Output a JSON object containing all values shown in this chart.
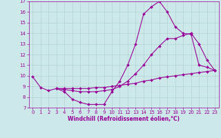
{
  "bg_color": "#cce8e8",
  "line_color": "#990099",
  "grid_color": "#aacccc",
  "xlabel": "Windchill (Refroidissement éolien,°C)",
  "xlim": [
    -0.5,
    23.5
  ],
  "ylim": [
    7,
    17
  ],
  "xticks": [
    0,
    1,
    2,
    3,
    4,
    5,
    6,
    7,
    8,
    9,
    10,
    11,
    12,
    13,
    14,
    15,
    16,
    17,
    18,
    19,
    20,
    21,
    22,
    23
  ],
  "yticks": [
    7,
    8,
    9,
    10,
    11,
    12,
    13,
    14,
    15,
    16,
    17
  ],
  "curve1_x": [
    0,
    1,
    2,
    3,
    4,
    5,
    6,
    7,
    8,
    9,
    10,
    11,
    12,
    13,
    14,
    15,
    16,
    17,
    18,
    19,
    20,
    21,
    22,
    23
  ],
  "curve1_y": [
    9.9,
    8.9,
    8.6,
    8.8,
    8.5,
    7.8,
    7.5,
    7.3,
    7.3,
    7.3,
    8.5,
    9.5,
    11.0,
    13.0,
    15.8,
    16.5,
    17.0,
    16.0,
    14.6,
    14.0,
    13.9,
    11.0,
    10.8,
    10.5
  ],
  "curve2_x": [
    3,
    4,
    5,
    6,
    7,
    8,
    9,
    10,
    11,
    12,
    13,
    14,
    15,
    16,
    17,
    18,
    19,
    20,
    21,
    22,
    23
  ],
  "curve2_y": [
    8.8,
    8.7,
    8.6,
    8.5,
    8.5,
    8.5,
    8.6,
    8.7,
    9.0,
    9.5,
    10.2,
    11.0,
    12.0,
    12.8,
    13.5,
    13.5,
    13.8,
    14.0,
    13.0,
    11.5,
    10.5
  ],
  "curve3_x": [
    3,
    4,
    5,
    6,
    7,
    8,
    9,
    10,
    11,
    12,
    13,
    14,
    15,
    16,
    17,
    18,
    19,
    20,
    21,
    22,
    23
  ],
  "curve3_y": [
    8.8,
    8.8,
    8.8,
    8.8,
    8.8,
    8.9,
    8.9,
    9.0,
    9.1,
    9.2,
    9.3,
    9.5,
    9.6,
    9.8,
    9.9,
    10.0,
    10.1,
    10.2,
    10.3,
    10.4,
    10.5
  ],
  "xlabel_fontsize": 5.5,
  "tick_fontsize": 5.0,
  "marker_size": 2.0,
  "line_width": 0.8
}
